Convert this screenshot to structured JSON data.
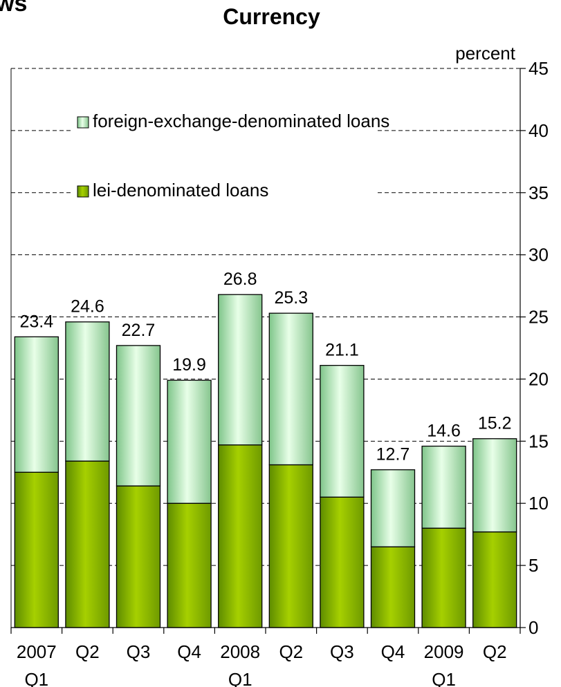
{
  "corner_text": "ws",
  "title": "Currency",
  "chart_data": {
    "type": "bar",
    "stacked": true,
    "title": "Currency",
    "ylabel": "percent",
    "ylim": [
      0,
      45
    ],
    "yticks": [
      0,
      5,
      10,
      15,
      20,
      25,
      30,
      35,
      40,
      45
    ],
    "categories": [
      [
        "2007",
        "Q1"
      ],
      [
        "Q2"
      ],
      [
        "Q3"
      ],
      [
        "Q4"
      ],
      [
        "2008",
        "Q1"
      ],
      [
        "Q2"
      ],
      [
        "Q3"
      ],
      [
        "Q4"
      ],
      [
        "2009",
        "Q1"
      ],
      [
        "Q2"
      ]
    ],
    "series": [
      {
        "name": "lei-denominated loans",
        "color": "#99CC00",
        "values": [
          12.5,
          13.4,
          11.4,
          10.0,
          14.7,
          13.1,
          10.5,
          6.5,
          8.0,
          7.7
        ]
      },
      {
        "name": "foreign-exchange-denominated loans",
        "color": "#CCFFCC",
        "values": [
          10.9,
          11.2,
          11.3,
          9.9,
          12.1,
          12.2,
          10.6,
          6.2,
          6.6,
          7.5
        ]
      }
    ],
    "totals": [
      "23.4",
      "24.6",
      "22.7",
      "19.9",
      "26.8",
      "25.3",
      "21.1",
      "12.7",
      "14.6",
      "15.2"
    ],
    "legend_position": "top-left inside plot",
    "grid": "horizontal dashed"
  }
}
